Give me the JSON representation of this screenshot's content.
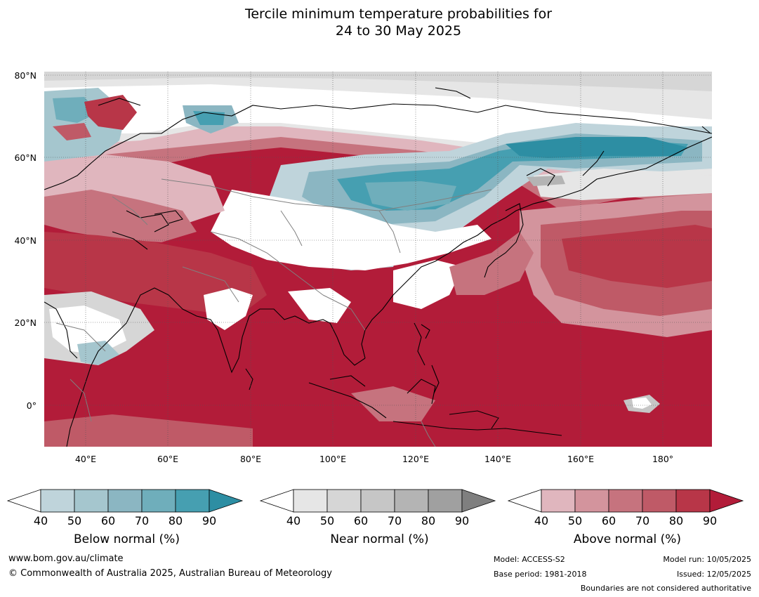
{
  "title": {
    "line1": "Tercile minimum temperature probabilities for",
    "line2": "24 to 30 May 2025"
  },
  "map": {
    "lat_labels": [
      "80°N",
      "60°N",
      "40°N",
      "20°N",
      "0°"
    ],
    "lon_labels": [
      "40°E",
      "60°E",
      "80°E",
      "100°E",
      "120°E",
      "140°E",
      "160°E",
      "180°"
    ],
    "lon_range": [
      30,
      192
    ],
    "lat_range": [
      -10,
      81
    ],
    "colors": {
      "below": [
        "#ffffff",
        "#bfd4db",
        "#a5c6ce",
        "#8bb6c2",
        "#6faebb",
        "#469fb1",
        "#2d8ea3"
      ],
      "near": [
        "#ffffff",
        "#e6e6e6",
        "#d6d6d6",
        "#c6c6c6",
        "#b4b4b4",
        "#a0a0a0",
        "#7f7f7f"
      ],
      "above": [
        "#ffffff",
        "#e0b6be",
        "#d3949d",
        "#c6737e",
        "#bf5a67",
        "#b83648",
        "#b21c39"
      ],
      "coast": "#000000",
      "border": "#808080"
    }
  },
  "colorbars": [
    {
      "key": "below",
      "title": "Below normal (%)",
      "ticks": [
        "40",
        "50",
        "60",
        "70",
        "80",
        "90"
      ]
    },
    {
      "key": "near",
      "title": "Near normal (%)",
      "ticks": [
        "40",
        "50",
        "60",
        "70",
        "80",
        "90"
      ]
    },
    {
      "key": "above",
      "title": "Above normal (%)",
      "ticks": [
        "40",
        "50",
        "60",
        "70",
        "80",
        "90"
      ]
    }
  ],
  "footer": {
    "url": "www.bom.gov.au/climate",
    "copyright": "© Commonwealth of Australia 2025, Australian Bureau of Meteorology",
    "model": "Model: ACCESS-S2",
    "base_period": "Base period: 1981-2018",
    "model_run": "Model run: 10/05/2025",
    "issued": "Issued: 12/05/2025",
    "disclaimer": "Boundaries are not considered authoritative"
  }
}
